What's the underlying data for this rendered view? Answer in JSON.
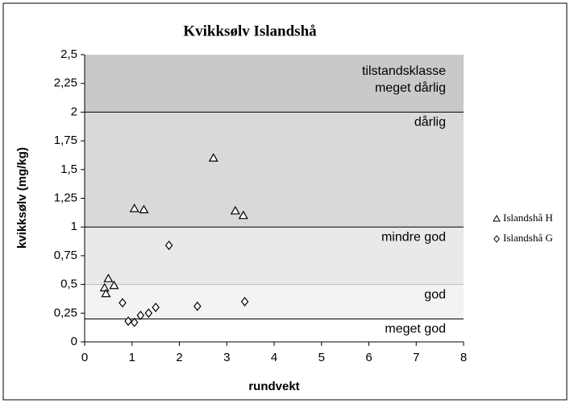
{
  "chart_data": {
    "type": "scatter",
    "title": "Kvikksølv Islandshå",
    "xlabel": "rundvekt",
    "ylabel": "kvikksølv (mg/kg)",
    "xlim": [
      0,
      8
    ],
    "xticks": [
      0,
      1,
      2,
      3,
      4,
      5,
      6,
      7,
      8
    ],
    "ylim": [
      0,
      2.5
    ],
    "yticks": [
      {
        "value": 0,
        "label": "0"
      },
      {
        "value": 0.25,
        "label": "0,25"
      },
      {
        "value": 0.5,
        "label": "0,5"
      },
      {
        "value": 0.75,
        "label": "0,75"
      },
      {
        "value": 1,
        "label": "1"
      },
      {
        "value": 1.25,
        "label": "1,25"
      },
      {
        "value": 1.5,
        "label": "1,5"
      },
      {
        "value": 1.75,
        "label": "1,75"
      },
      {
        "value": 2,
        "label": "2"
      },
      {
        "value": 2.25,
        "label": "2,25"
      },
      {
        "value": 2.5,
        "label": "2,5"
      }
    ],
    "band_title": "tilstandsklasse",
    "bands": [
      {
        "label": "meget dårlig",
        "from": 2,
        "to": 2.5,
        "color": "#c9c9c9"
      },
      {
        "label": "dårlig",
        "from": 1,
        "to": 2,
        "color": "#d9d9d9"
      },
      {
        "label": "mindre god",
        "from": 0.5,
        "to": 1,
        "color": "#e9e9e9"
      },
      {
        "label": "god",
        "from": 0.2,
        "to": 0.5,
        "color": "#f3f3f3"
      },
      {
        "label": "meget god",
        "from": 0,
        "to": 0.2,
        "color": "#ffffff"
      }
    ],
    "series": [
      {
        "name": "Islandshå H",
        "marker": "triangle",
        "color": "#000000",
        "x": [
          0.42,
          0.45,
          0.5,
          0.62,
          1.05,
          1.25,
          2.72,
          3.18,
          3.35
        ],
        "values": [
          0.47,
          0.42,
          0.55,
          0.49,
          1.16,
          1.15,
          1.6,
          1.14,
          1.1
        ]
      },
      {
        "name": "Islandshå G",
        "marker": "diamond",
        "color": "#000000",
        "x": [
          0.8,
          0.92,
          1.05,
          1.18,
          1.35,
          1.5,
          1.78,
          2.38,
          3.38
        ],
        "values": [
          0.34,
          0.18,
          0.17,
          0.23,
          0.25,
          0.3,
          0.84,
          0.31,
          0.35
        ]
      }
    ]
  }
}
